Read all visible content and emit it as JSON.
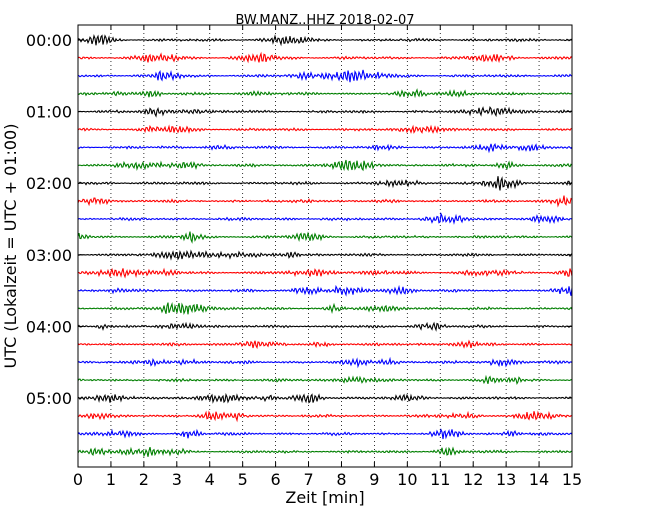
{
  "chart_data": {
    "type": "line",
    "title": "BW.MANZ..HHZ 2018-02-07",
    "xlabel": "Zeit  [min]",
    "ylabel": "UTC (Lokalzeit = UTC + 01:00)",
    "xlim": [
      0,
      15
    ],
    "x_ticks": [
      "0",
      "1",
      "2",
      "3",
      "4",
      "5",
      "6",
      "7",
      "8",
      "9",
      "10",
      "11",
      "12",
      "13",
      "14",
      "15"
    ],
    "y_tick_labels": [
      "00:00",
      "01:00",
      "02:00",
      "03:00",
      "04:00",
      "05:00"
    ],
    "trace_count": 24,
    "trace_interval_minutes": 15,
    "trace_colors": [
      "#000000",
      "#ff0000",
      "#0000ff",
      "#007f00"
    ],
    "grid": {
      "x": true,
      "y": false,
      "style": "dotted"
    }
  }
}
